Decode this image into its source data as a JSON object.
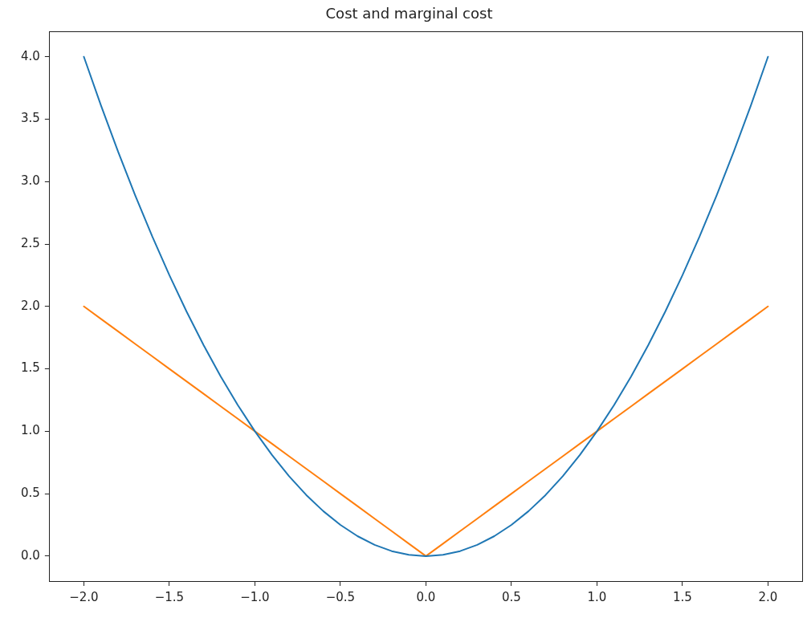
{
  "chart_data": {
    "type": "line",
    "title": "Cost and marginal cost",
    "x": [
      -2,
      -1.9,
      -1.8,
      -1.7,
      -1.6,
      -1.5,
      -1.4,
      -1.3,
      -1.2,
      -1.1,
      -1,
      -0.9,
      -0.8,
      -0.7,
      -0.6,
      -0.5,
      -0.4,
      -0.3,
      -0.2,
      -0.1,
      0,
      0.1,
      0.2,
      0.3,
      0.4,
      0.5,
      0.6,
      0.7,
      0.8,
      0.9,
      1,
      1.1,
      1.2,
      1.3,
      1.4,
      1.5,
      1.6,
      1.7,
      1.8,
      1.9,
      2
    ],
    "series": [
      {
        "color": "#1f77b4",
        "values": [
          4,
          3.61,
          3.24,
          2.89,
          2.56,
          2.25,
          1.96,
          1.69,
          1.44,
          1.21,
          1,
          0.81,
          0.64,
          0.49,
          0.36,
          0.25,
          0.16,
          0.09,
          0.04,
          0.01,
          0,
          0.01,
          0.04,
          0.09,
          0.16,
          0.25,
          0.36,
          0.49,
          0.64,
          0.81,
          1,
          1.21,
          1.44,
          1.69,
          1.96,
          2.25,
          2.56,
          2.89,
          3.24,
          3.61,
          4
        ]
      },
      {
        "color": "#ff7f0e",
        "values": [
          2,
          1.9,
          1.8,
          1.7,
          1.6,
          1.5,
          1.4,
          1.3,
          1.2,
          1.1,
          1,
          0.9,
          0.8,
          0.7,
          0.6,
          0.5,
          0.4,
          0.3,
          0.2,
          0.1,
          0,
          0.1,
          0.2,
          0.3,
          0.4,
          0.5,
          0.6,
          0.7,
          0.8,
          0.9,
          1,
          1.1,
          1.2,
          1.3,
          1.4,
          1.5,
          1.6,
          1.7,
          1.8,
          1.9,
          2
        ]
      }
    ],
    "xlim": [
      -2.2,
      2.2
    ],
    "ylim": [
      -0.2,
      4.2
    ],
    "xticks": [
      {
        "value": -2,
        "label": "−2.0"
      },
      {
        "value": -1.5,
        "label": "−1.5"
      },
      {
        "value": -1,
        "label": "−1.0"
      },
      {
        "value": -0.5,
        "label": "−0.5"
      },
      {
        "value": 0,
        "label": "0.0"
      },
      {
        "value": 0.5,
        "label": "0.5"
      },
      {
        "value": 1,
        "label": "1.0"
      },
      {
        "value": 1.5,
        "label": "1.5"
      },
      {
        "value": 2,
        "label": "2.0"
      }
    ],
    "yticks": [
      {
        "value": 0,
        "label": "0.0"
      },
      {
        "value": 0.5,
        "label": "0.5"
      },
      {
        "value": 1,
        "label": "1.0"
      },
      {
        "value": 1.5,
        "label": "1.5"
      },
      {
        "value": 2,
        "label": "2.0"
      },
      {
        "value": 2.5,
        "label": "2.5"
      },
      {
        "value": 3,
        "label": "3.0"
      },
      {
        "value": 3.5,
        "label": "3.5"
      },
      {
        "value": 4,
        "label": "4.0"
      }
    ],
    "grid": false,
    "legend": false
  }
}
